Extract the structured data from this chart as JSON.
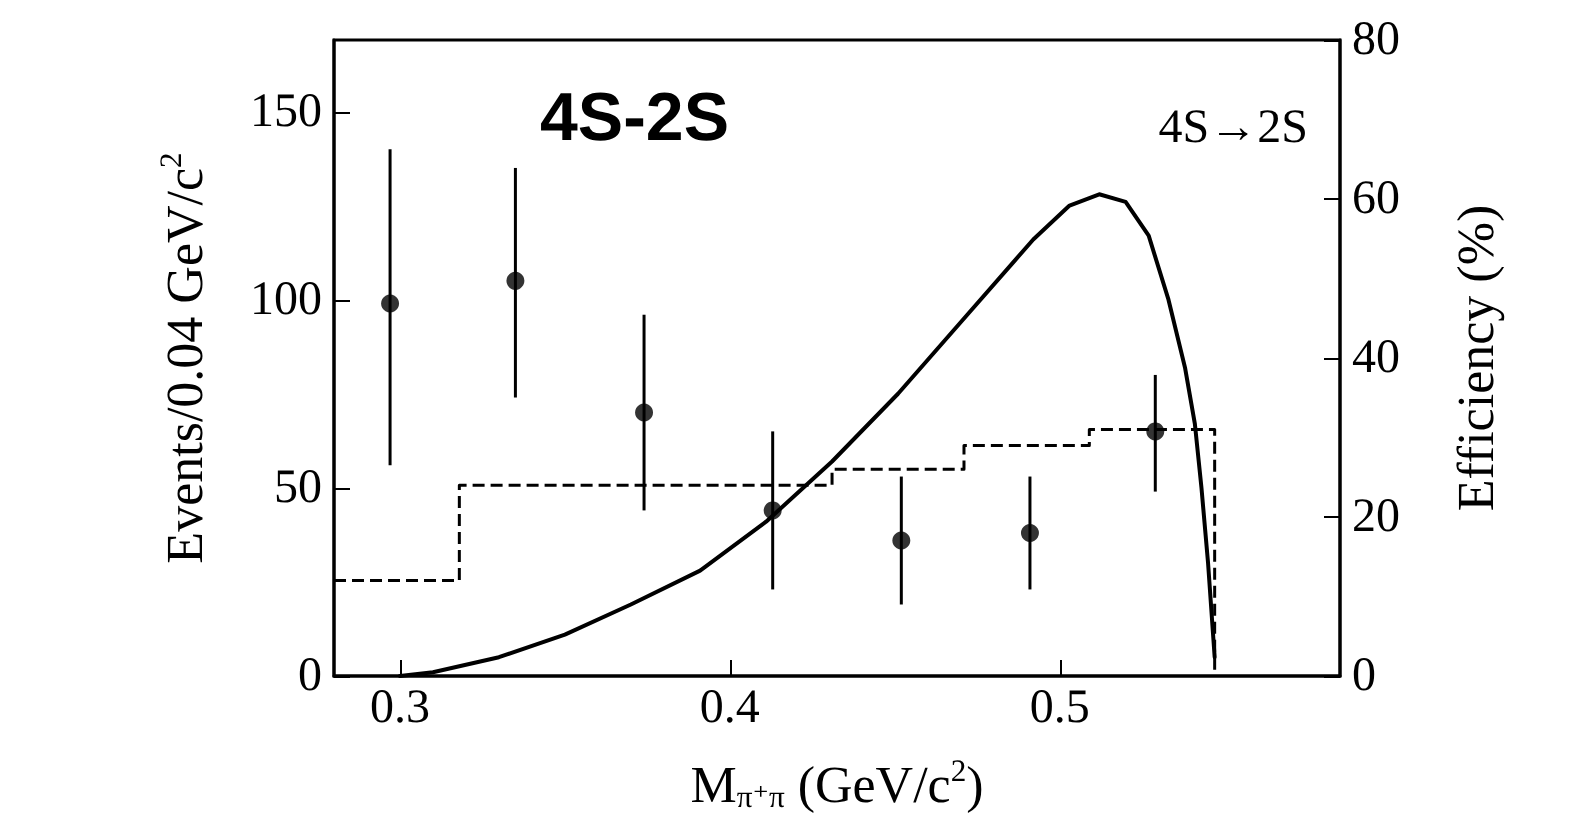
{
  "chart_data": {
    "type": "scatter",
    "xlabel": "M$_{π⁺π}$ (GeV/c$^{2}$)",
    "ylabel": "Events/0.04 GeV/c$^{2}$",
    "y2label": "Efficiency (%)",
    "annotations": [
      "4S-2S",
      "4S→2S"
    ],
    "xlim": [
      0.28,
      0.585
    ],
    "xticks": [
      0.3,
      0.4,
      0.5
    ],
    "ylim": [
      0,
      169
    ],
    "yticks": [
      0,
      50,
      100,
      150
    ],
    "y2lim": [
      0,
      80
    ],
    "y2ticks": [
      0,
      20,
      40,
      60,
      80
    ],
    "grid": false,
    "series": [
      {
        "marker": "circle",
        "color": "#000000",
        "x": [
          0.297,
          0.335,
          0.374,
          0.413,
          0.452,
          0.491,
          0.529
        ],
        "values": [
          99,
          105,
          70,
          44,
          36,
          38,
          65
        ],
        "errors": [
          [
            56,
            140
          ],
          [
            74,
            135
          ],
          [
            44,
            96
          ],
          [
            23,
            65
          ],
          [
            19,
            53
          ],
          [
            23,
            53
          ],
          [
            49,
            80
          ]
        ]
      },
      {
        "type": "line",
        "color": "#000000",
        "line_style": "solid",
        "x": [
          0.3,
          0.31,
          0.33,
          0.35,
          0.37,
          0.391,
          0.411,
          0.431,
          0.451,
          0.472,
          0.492,
          0.503,
          0.512,
          0.52,
          0.527,
          0.533,
          0.538,
          0.541,
          0.543,
          0.545,
          0.547
        ],
        "values": [
          0,
          1,
          5,
          11,
          19,
          28,
          41,
          57,
          75,
          96,
          116,
          125,
          128,
          126,
          117,
          100,
          82,
          67,
          50,
          30,
          5
        ]
      },
      {
        "type": "step",
        "axis": "y2",
        "color": "#000000",
        "line_style": "dashed",
        "x": [
          0.28,
          0.318,
          0.431,
          0.471,
          0.509,
          0.547
        ],
        "values": [
          12,
          24,
          26,
          29,
          31,
          0
        ]
      }
    ]
  }
}
